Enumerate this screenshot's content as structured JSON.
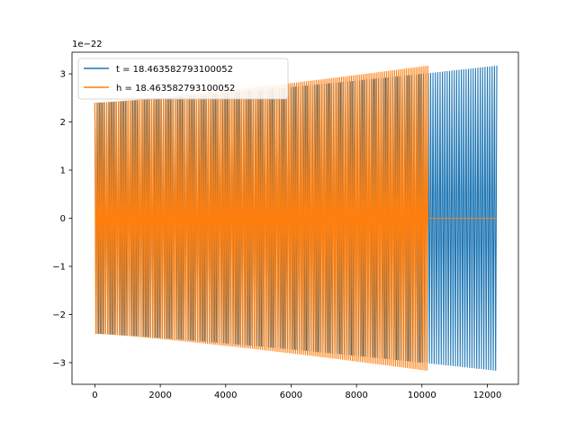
{
  "chart_data": {
    "type": "line",
    "title": "",
    "xlabel": "",
    "ylabel": "",
    "offset_label": "1e−22",
    "xlim": [
      -700,
      12950
    ],
    "ylim": [
      -3.45,
      3.45
    ],
    "xticks": [
      0,
      2000,
      4000,
      6000,
      8000,
      10000,
      12000
    ],
    "xtick_labels": [
      "0",
      "2000",
      "4000",
      "6000",
      "8000",
      "10000",
      "12000"
    ],
    "yticks": [
      -3,
      -2,
      -1,
      0,
      1,
      2,
      3
    ],
    "ytick_labels": [
      "−3",
      "−2",
      "−1",
      "0",
      "1",
      "2",
      "3"
    ],
    "grid": false,
    "legend": {
      "position": "top-left"
    },
    "series": [
      {
        "name": "t = 18.463582793100052",
        "color": "#1f77b4",
        "description_values": {
          "x_start": 0,
          "x_end": 12290,
          "amplitude_start": 2.4,
          "amplitude_end": 3.17,
          "oscillation": "dense chirp"
        }
      },
      {
        "name": "h = 18.463582793100052",
        "color": "#ff7f0e",
        "description_values": {
          "x_start": 0,
          "x_end": 10180,
          "amplitude_start": 2.4,
          "amplitude_end": 3.17,
          "flat_after": 10180,
          "flat_value": 0,
          "flat_end": 12290,
          "oscillation": "dense chirp"
        }
      }
    ]
  }
}
